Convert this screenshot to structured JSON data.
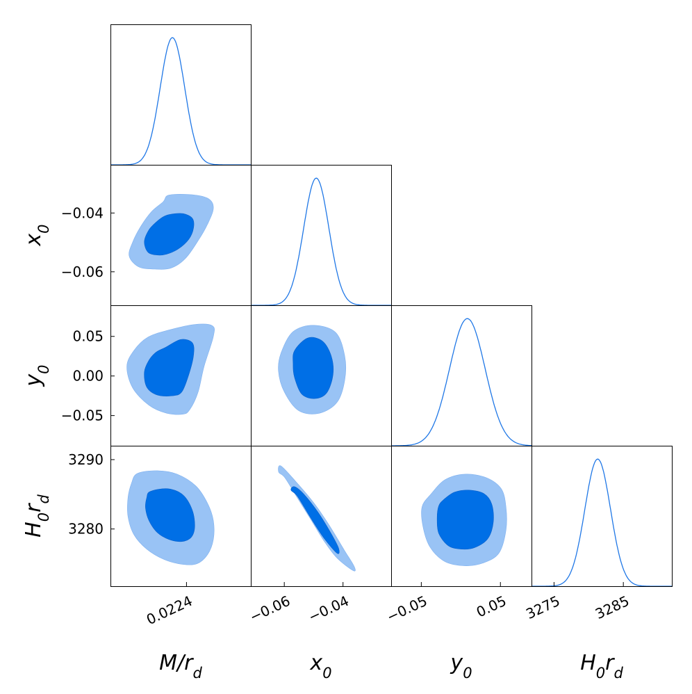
{
  "chart_data": {
    "type": "corner",
    "parameters": [
      {
        "key": "M_rd",
        "label": "M/r",
        "sub": "d"
      },
      {
        "key": "x0",
        "label": "x",
        "sub": "0"
      },
      {
        "key": "y0",
        "label": "y",
        "sub": "0"
      },
      {
        "key": "H0rd",
        "label": "H",
        "sub": "0",
        "label2": "r",
        "sub2": "d"
      }
    ],
    "ranges": {
      "M_rd": [
        0.022335,
        0.022455
      ],
      "x0": [
        -0.0714,
        -0.0236
      ],
      "y0": [
        -0.0881,
        0.0893
      ],
      "H0rd": [
        3271.75,
        3292.0
      ]
    },
    "ticks": {
      "M_rd": [
        {
          "v": 0.0224,
          "label": "0.0224"
        }
      ],
      "x0": [
        {
          "v": -0.06,
          "label": "−0.06"
        },
        {
          "v": -0.04,
          "label": "−0.04"
        }
      ],
      "y0": [
        {
          "v": -0.05,
          "label": "−0.05"
        },
        {
          "v": 0.0,
          "label": "0.00"
        },
        {
          "v": 0.05,
          "label": "0.05"
        }
      ],
      "H0rd": [
        {
          "v": 3275,
          "label": "3275"
        },
        {
          "v": 3280,
          "label": "3280"
        },
        {
          "v": 3285,
          "label": "3285"
        },
        {
          "v": 3290,
          "label": "3290"
        }
      ]
    },
    "y_tick_values": {
      "x0": [
        -0.04,
        -0.06
      ],
      "y0": [
        0.05,
        0.0,
        -0.05
      ],
      "H0rd": [
        3290,
        3280
      ]
    },
    "x_tick_labels": {
      "x0": [
        "−0.06",
        "−0.04"
      ],
      "y0": [
        "−0.05",
        "0.05"
      ],
      "H0rd": [
        "3275",
        "3285"
      ]
    },
    "y_tick_labels": {
      "x0": [
        "−0.04",
        "−0.06"
      ],
      "y0": [
        "0.05",
        "0.00",
        "−0.05"
      ],
      "H0rd": [
        "3290",
        "3280"
      ]
    },
    "marginals": {
      "M_rd": {
        "mean": 0.022388,
        "sigma": 1.05e-05
      },
      "x0": {
        "mean": -0.0491,
        "sigma": 0.0043
      },
      "y0": {
        "mean": 0.0082,
        "sigma": 0.0225
      },
      "H0rd": {
        "mean": 3281.3,
        "sigma": 1.85
      }
    },
    "contours": {
      "M_rd|x0": {
        "outer": [
          [
            0.022385,
            -0.0339
          ],
          [
            0.022405,
            -0.0338
          ],
          [
            0.022419,
            -0.0352
          ],
          [
            0.022423,
            -0.0384
          ],
          [
            0.022418,
            -0.0438
          ],
          [
            0.02241,
            -0.0494
          ],
          [
            0.022399,
            -0.0555
          ],
          [
            0.022387,
            -0.0587
          ],
          [
            0.022373,
            -0.0591
          ],
          [
            0.022359,
            -0.0583
          ],
          [
            0.022351,
            -0.0546
          ],
          [
            0.022354,
            -0.0499
          ],
          [
            0.022361,
            -0.0445
          ],
          [
            0.02237,
            -0.0396
          ],
          [
            0.02238,
            -0.0362
          ]
        ],
        "inner": [
          [
            0.022387,
            -0.0404
          ],
          [
            0.022397,
            -0.0402
          ],
          [
            0.022405,
            -0.0418
          ],
          [
            0.022406,
            -0.0451
          ],
          [
            0.022402,
            -0.0489
          ],
          [
            0.022393,
            -0.0522
          ],
          [
            0.022383,
            -0.054
          ],
          [
            0.022375,
            -0.0543
          ],
          [
            0.022367,
            -0.0533
          ],
          [
            0.022364,
            -0.0497
          ],
          [
            0.022368,
            -0.0457
          ],
          [
            0.022375,
            -0.0428
          ],
          [
            0.022381,
            -0.0411
          ]
        ]
      },
      "M_rd|y0": {
        "outer": [
          [
            0.022385,
            0.058
          ],
          [
            0.022407,
            0.065
          ],
          [
            0.022422,
            0.0635
          ],
          [
            0.022423,
            0.05
          ],
          [
            0.022415,
            0.012
          ],
          [
            0.02241,
            -0.02
          ],
          [
            0.022403,
            -0.042
          ],
          [
            0.022397,
            -0.0482
          ],
          [
            0.022383,
            -0.047
          ],
          [
            0.022368,
            -0.037
          ],
          [
            0.022354,
            -0.015
          ],
          [
            0.022349,
            0.012
          ],
          [
            0.022355,
            0.032
          ],
          [
            0.022367,
            0.049
          ]
        ],
        "inner": [
          [
            0.022382,
            0.036
          ],
          [
            0.022395,
            0.046
          ],
          [
            0.022405,
            0.042
          ],
          [
            0.022406,
            0.026
          ],
          [
            0.022402,
            0.002
          ],
          [
            0.022396,
            -0.02
          ],
          [
            0.022388,
            -0.025
          ],
          [
            0.022375,
            -0.024
          ],
          [
            0.022366,
            -0.014
          ],
          [
            0.022364,
            0.005
          ],
          [
            0.022368,
            0.02
          ],
          [
            0.022374,
            0.03
          ]
        ]
      },
      "M_rd|H0rd": {
        "outer": [
          [
            0.022358,
            3288.0
          ],
          [
            0.022375,
            3288.4
          ],
          [
            0.022392,
            3287.9
          ],
          [
            0.022408,
            3286.2
          ],
          [
            0.022418,
            3283.7
          ],
          [
            0.022423,
            3281.2
          ],
          [
            0.022423,
            3278.5
          ],
          [
            0.022418,
            3276.3
          ],
          [
            0.022409,
            3275.0
          ],
          [
            0.022397,
            3274.9
          ],
          [
            0.022381,
            3275.6
          ],
          [
            0.022366,
            3277.1
          ],
          [
            0.022355,
            3279.2
          ],
          [
            0.02235,
            3281.8
          ],
          [
            0.02235,
            3284.5
          ],
          [
            0.022353,
            3286.6
          ]
        ],
        "inner": [
          [
            0.022369,
            3285.4
          ],
          [
            0.022384,
            3285.8
          ],
          [
            0.022397,
            3284.9
          ],
          [
            0.022405,
            3282.7
          ],
          [
            0.022407,
            3280.3
          ],
          [
            0.022404,
            3278.8
          ],
          [
            0.022396,
            3278.2
          ],
          [
            0.022385,
            3278.5
          ],
          [
            0.022375,
            3279.5
          ],
          [
            0.022368,
            3281.2
          ],
          [
            0.022365,
            3283.0
          ],
          [
            0.022366,
            3284.5
          ]
        ]
      },
      "x0|y0": {
        "outer": [
          [
            -0.061,
            0.03
          ],
          [
            -0.057,
            0.056
          ],
          [
            -0.05,
            0.064
          ],
          [
            -0.0425,
            0.055
          ],
          [
            -0.0394,
            0.025
          ],
          [
            -0.0394,
            -0.005
          ],
          [
            -0.042,
            -0.033
          ],
          [
            -0.048,
            -0.047
          ],
          [
            -0.055,
            -0.044
          ],
          [
            -0.06,
            -0.02
          ],
          [
            -0.062,
            0.007
          ]
        ],
        "inner": [
          [
            -0.0565,
            0.032
          ],
          [
            -0.052,
            0.048
          ],
          [
            -0.047,
            0.044
          ],
          [
            -0.044,
            0.025
          ],
          [
            -0.0434,
            0.002
          ],
          [
            -0.0455,
            -0.021
          ],
          [
            -0.0495,
            -0.0285
          ],
          [
            -0.054,
            -0.023
          ],
          [
            -0.0565,
            -0.002
          ],
          [
            -0.057,
            0.015
          ]
        ]
      },
      "x0|H0rd": {
        "outer": [
          [
            -0.0619,
            3288.2
          ],
          [
            -0.0598,
            3287.4
          ],
          [
            -0.056,
            3284.8
          ],
          [
            -0.051,
            3281.4
          ],
          [
            -0.0465,
            3278.3
          ],
          [
            -0.042,
            3275.8
          ],
          [
            -0.0365,
            3274.0
          ],
          [
            -0.0362,
            3274.6
          ],
          [
            -0.0395,
            3276.9
          ],
          [
            -0.0448,
            3280.6
          ],
          [
            -0.05,
            3283.8
          ],
          [
            -0.056,
            3286.8
          ],
          [
            -0.0612,
            3289.1
          ]
        ],
        "inner": [
          [
            -0.0577,
            3285.6
          ],
          [
            -0.0555,
            3284.7
          ],
          [
            -0.051,
            3281.6
          ],
          [
            -0.0465,
            3278.7
          ],
          [
            -0.042,
            3276.5
          ],
          [
            -0.0415,
            3277.2
          ],
          [
            -0.044,
            3279.3
          ],
          [
            -0.0485,
            3282.4
          ],
          [
            -0.0533,
            3285.0
          ],
          [
            -0.0565,
            3286.1
          ]
        ]
      },
      "y0|H0rd": {
        "outer": [
          [
            -0.038,
            3285.0
          ],
          [
            -0.02,
            3287.1
          ],
          [
            0.005,
            3287.9
          ],
          [
            0.032,
            3287.4
          ],
          [
            0.051,
            3285.8
          ],
          [
            0.057,
            3283.2
          ],
          [
            0.057,
            3279.8
          ],
          [
            0.048,
            3276.5
          ],
          [
            0.028,
            3275.1
          ],
          [
            0.005,
            3274.7
          ],
          [
            -0.02,
            3275.3
          ],
          [
            -0.039,
            3277.4
          ],
          [
            -0.048,
            3280.4
          ],
          [
            -0.049,
            3283.2
          ]
        ],
        "inner": [
          [
            -0.022,
            3284.2
          ],
          [
            -0.008,
            3285.3
          ],
          [
            0.01,
            3285.6
          ],
          [
            0.029,
            3285.1
          ],
          [
            0.039,
            3283.6
          ],
          [
            0.041,
            3281.0
          ],
          [
            0.034,
            3278.6
          ],
          [
            0.017,
            3277.3
          ],
          [
            0.0,
            3277.1
          ],
          [
            -0.016,
            3277.6
          ],
          [
            -0.028,
            3279.4
          ],
          [
            -0.03,
            3281.6
          ],
          [
            -0.028,
            3283.3
          ]
        ]
      }
    },
    "colors": {
      "outer_fill": "#99c3f5",
      "inner_fill": "#006fe6",
      "line": "#1f77e6",
      "frame": "#000000"
    }
  }
}
